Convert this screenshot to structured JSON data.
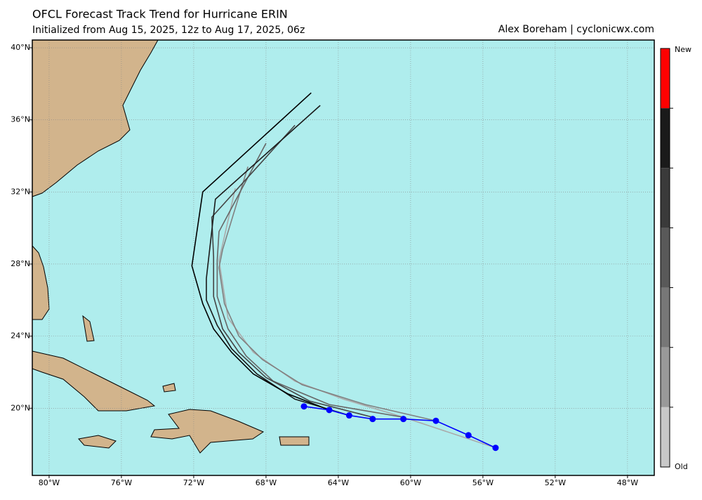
{
  "chart_data": {
    "type": "line",
    "title": "OFCL Forecast Track Trend for Hurricane ERIN",
    "subtitle": "Initialized from Aug 15, 2025, 12z to Aug 17, 2025, 06z",
    "credit": "Alex Boreham | cyclonicwx.com",
    "xlim": [
      -80.93,
      -46.52
    ],
    "ylim": [
      16.27,
      40.43
    ],
    "xticks": [
      {
        "value": -80,
        "label": "80°W"
      },
      {
        "value": -76,
        "label": "76°W"
      },
      {
        "value": -72,
        "label": "72°W"
      },
      {
        "value": -68,
        "label": "68°W"
      },
      {
        "value": -64,
        "label": "64°W"
      },
      {
        "value": -60,
        "label": "60°W"
      },
      {
        "value": -56,
        "label": "56°W"
      },
      {
        "value": -52,
        "label": "52°W"
      },
      {
        "value": -48,
        "label": "48°W"
      }
    ],
    "yticks": [
      {
        "value": 20,
        "label": "20°N"
      },
      {
        "value": 24,
        "label": "24°N"
      },
      {
        "value": 28,
        "label": "28°N"
      },
      {
        "value": 32,
        "label": "32°N"
      },
      {
        "value": 36,
        "label": "36°N"
      },
      {
        "value": 40,
        "label": "40°N"
      }
    ],
    "grid": true,
    "ocean_color": "#afeded",
    "series": [
      {
        "color": "#aaaaaa",
        "x": [
          -55.3,
          -60.4,
          -63.7,
          -66.4,
          -68.7,
          -70.1,
          -70.6,
          -69.7
        ],
        "values": [
          17.8,
          19.5,
          20.5,
          21.5,
          23.1,
          25.0,
          28.2,
          32.2
        ]
      },
      {
        "color": "#808080",
        "x": [
          -58.6,
          -62.5,
          -66.0,
          -68.2,
          -69.5,
          -70.3,
          -70.6,
          -70.4,
          -69.0
        ],
        "values": [
          19.3,
          20.2,
          21.3,
          22.7,
          24.0,
          25.8,
          27.8,
          28.8,
          33.4
        ]
      },
      {
        "color": "#666666",
        "x": [
          -60.4,
          -64.5,
          -67.6,
          -69.1,
          -70.1,
          -70.7,
          -70.7,
          -70.6,
          -68.0
        ],
        "values": [
          19.5,
          20.2,
          21.5,
          22.9,
          24.4,
          26.2,
          28.2,
          29.8,
          34.7
        ]
      },
      {
        "color": "#444444",
        "x": [
          -62.1,
          -65.6,
          -68.0,
          -69.5,
          -70.4,
          -70.9,
          -70.9,
          -71.0,
          -66.4
        ],
        "values": [
          19.5,
          20.4,
          21.7,
          23.1,
          24.4,
          26.2,
          28.4,
          30.6,
          35.7
        ]
      },
      {
        "color": "#1a1a1a",
        "x": [
          -63.4,
          -66.4,
          -68.5,
          -69.9,
          -70.7,
          -71.3,
          -71.3,
          -70.8,
          -65.0
        ],
        "values": [
          19.6,
          20.5,
          21.9,
          23.3,
          24.6,
          26.0,
          27.2,
          31.6,
          36.8
        ]
      },
      {
        "color": "#000000",
        "x": [
          -64.5,
          -66.8,
          -68.7,
          -69.9,
          -70.9,
          -71.5,
          -72.1,
          -71.5,
          -65.5
        ],
        "values": [
          19.9,
          20.8,
          21.9,
          23.1,
          24.4,
          25.8,
          27.9,
          32.0,
          37.5
        ]
      },
      {
        "color": "#0000ff",
        "markers": true,
        "x": [
          -55.3,
          -56.8,
          -58.6,
          -60.4,
          -62.1,
          -63.4,
          -64.5,
          -65.9
        ],
        "values": [
          17.8,
          18.5,
          19.3,
          19.4,
          19.4,
          19.6,
          19.9,
          20.1
        ]
      }
    ],
    "colorbar": {
      "colors": [
        "#ff0000",
        "#1a1a1a",
        "#3a3a3a",
        "#595959",
        "#777777",
        "#999999",
        "#c8c8c8"
      ],
      "top_label": "New",
      "bottom_label": "Old"
    }
  }
}
